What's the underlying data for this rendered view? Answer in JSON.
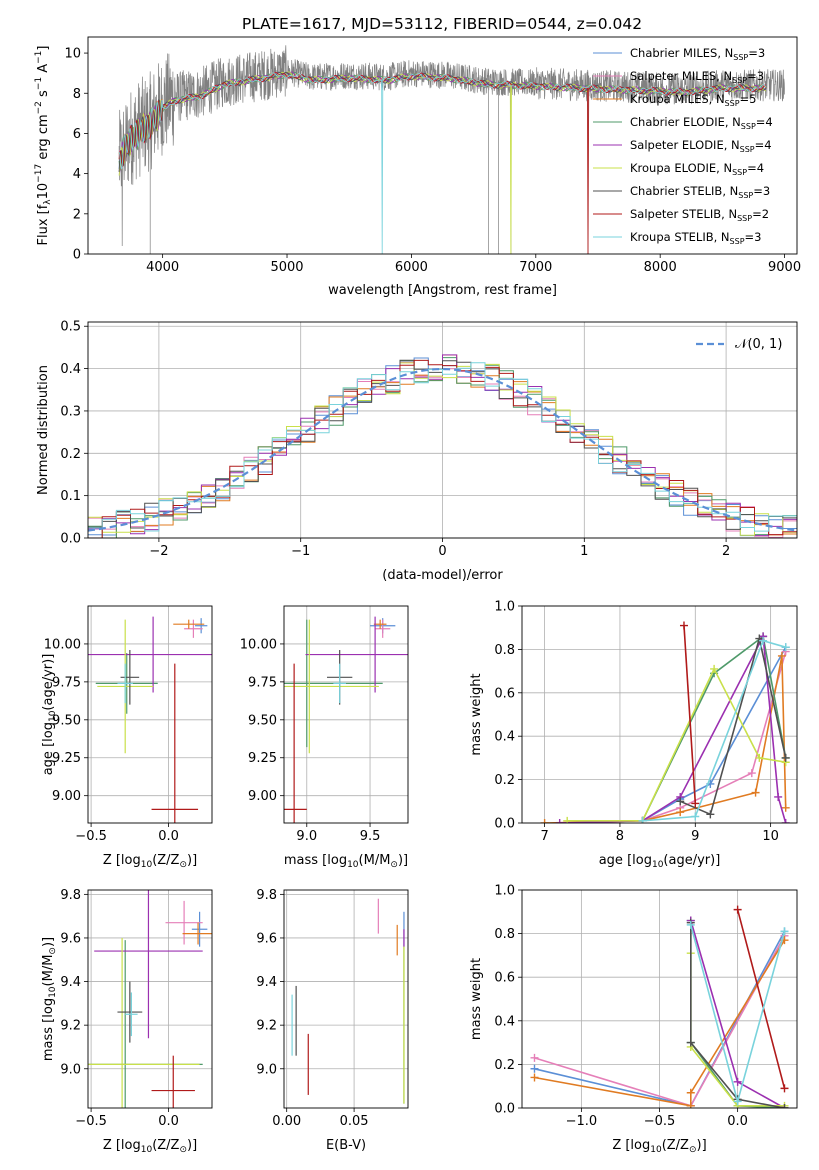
{
  "figure": {
    "title": "PLATE=1617, MJD=53112, FIBERID=0544, z=0.042"
  },
  "colors": {
    "Chabrier MILES": "#5b8fd6",
    "Salpeter MILES": "#e57fb8",
    "Kroupa MILES": "#e07b22",
    "Chabrier ELODIE": "#4f9a6a",
    "Salpeter ELODIE": "#9b30b0",
    "Kroupa ELODIE": "#c9e04a",
    "Chabrier STELIB": "#505050",
    "Salpeter STELIB": "#b01a1a",
    "Kroupa STELIB": "#79d3dc",
    "data": "#808080",
    "normal": "#5b8fd6"
  },
  "chart_data": [
    {
      "id": "spectrum",
      "type": "line",
      "xlabel": "wavelength [Angstrom, rest frame]",
      "ylabel_main": "Flux [f",
      "ylabel_sub": "λ",
      "ylabel_rest": "10",
      "ylabel_sup1": "−17",
      "ylabel_mid": " erg cm",
      "ylabel_sup2": "−2",
      "ylabel_mid2": " s",
      "ylabel_sup3": "−1",
      "ylabel_mid3": " A",
      "ylabel_sup4": "−1",
      "ylabel_end": "]",
      "xlim": [
        3400,
        9100
      ],
      "ylim": [
        0,
        10.8
      ],
      "xticks": [
        4000,
        5000,
        6000,
        7000,
        8000,
        9000
      ],
      "yticks": [
        0,
        2,
        4,
        6,
        8,
        10
      ],
      "legend": [
        {
          "model": "Chabrier MILES",
          "label": "Chabrier MILES, N",
          "sub": "SSP",
          "tail": "=3"
        },
        {
          "model": "Salpeter MILES",
          "label": "Salpeter MILES, N",
          "sub": "SSP",
          "tail": "=3"
        },
        {
          "model": "Kroupa MILES",
          "label": "Kroupa MILES, N",
          "sub": "SSP",
          "tail": "=5"
        },
        {
          "model": "Chabrier ELODIE",
          "label": "Chabrier ELODIE, N",
          "sub": "SSP",
          "tail": "=4"
        },
        {
          "model": "Salpeter ELODIE",
          "label": "Salpeter ELODIE, N",
          "sub": "SSP",
          "tail": "=4"
        },
        {
          "model": "Kroupa ELODIE",
          "label": "Kroupa ELODIE, N",
          "sub": "SSP",
          "tail": "=4"
        },
        {
          "model": "Chabrier STELIB",
          "label": "Chabrier STELIB, N",
          "sub": "SSP",
          "tail": "=3"
        },
        {
          "model": "Salpeter STELIB",
          "label": "Salpeter STELIB, N",
          "sub": "SSP",
          "tail": "=2"
        },
        {
          "model": "Kroupa STELIB",
          "label": "Kroupa STELIB, N",
          "sub": "SSP",
          "tail": "=3"
        }
      ],
      "continuum": {
        "x": [
          3650,
          3700,
          3800,
          3900,
          4000,
          4100,
          4200,
          4300,
          4400,
          4500,
          4700,
          5000,
          5200,
          5500,
          5800,
          6000,
          6300,
          6600,
          7000,
          7400,
          7800,
          8200,
          8500,
          8800
        ],
        "y": [
          4.6,
          5.5,
          6.2,
          6.6,
          7.4,
          7.8,
          7.9,
          8.0,
          8.3,
          8.6,
          8.8,
          9.1,
          8.8,
          8.9,
          8.8,
          9.0,
          8.9,
          8.6,
          8.5,
          8.4,
          8.3,
          8.2,
          8.4,
          8.4
        ]
      },
      "models_range": [
        3650,
        8850
      ],
      "data_range": [
        3650,
        9000
      ]
    },
    {
      "id": "residuals",
      "type": "histogram",
      "xlabel": "(data-model)/error",
      "ylabel": "Normed distribution",
      "xlim": [
        -2.5,
        2.5
      ],
      "ylim": [
        0,
        0.51
      ],
      "xticks": [
        -2,
        -1,
        0,
        1,
        2
      ],
      "yticks": [
        0,
        0.1,
        0.2,
        0.3,
        0.4,
        0.5
      ],
      "legend_label": "𝒩(0, 1)",
      "bin_width": 0.1
    },
    {
      "id": "age-Z",
      "type": "scatter",
      "xlabel": "Z [log",
      "xlabel_sub": "10",
      "xlabel_rest": "(Z/Z",
      "xlabel_sun": "⊙",
      "xlabel_end": ")]",
      "ylabel": "age  [log",
      "ylabel_sub": "10",
      "ylabel_rest": "(age/yr)]",
      "xlim": [
        -0.52,
        0.28
      ],
      "ylim": [
        8.82,
        10.25
      ],
      "xticks": [
        -0.5,
        0.0
      ],
      "yticks": [
        9.0,
        9.25,
        9.5,
        9.75,
        10.0
      ],
      "points": [
        {
          "model": "Chabrier MILES",
          "x": 0.21,
          "y": 10.12,
          "xerr": 0.04,
          "yerr": 0.05
        },
        {
          "model": "Salpeter MILES",
          "x": 0.16,
          "y": 10.1,
          "xerr": 0.06,
          "yerr": 0.06
        },
        {
          "model": "Kroupa MILES",
          "x": 0.13,
          "y": 10.13,
          "xerr": 0.1,
          "yerr": 0.03
        },
        {
          "model": "Chabrier ELODIE",
          "x": -0.27,
          "y": 9.74,
          "xerr": 0.2,
          "yerr": 0.2
        },
        {
          "model": "Salpeter ELODIE",
          "x": -0.1,
          "y": 9.93,
          "xerr": 0.45,
          "yerr": 0.25
        },
        {
          "model": "Kroupa ELODIE",
          "x": -0.28,
          "y": 9.72,
          "xerr": 0.18,
          "yerr": 0.44
        },
        {
          "model": "Chabrier STELIB",
          "x": -0.25,
          "y": 9.78,
          "xerr": 0.06,
          "yerr": 0.18
        },
        {
          "model": "Salpeter STELIB",
          "x": 0.04,
          "y": 8.91,
          "xerr": 0.15,
          "yerr": 0.96
        },
        {
          "model": "Kroupa STELIB",
          "x": -0.28,
          "y": 9.74,
          "xerr": 0.05,
          "yerr": 0.13
        }
      ]
    },
    {
      "id": "age-mass",
      "type": "scatter",
      "xlabel": "mass [log",
      "xlabel_sub": "10",
      "xlabel_rest": "(M/M",
      "xlabel_sun": "⊙",
      "xlabel_end": ")]",
      "xlim": [
        8.82,
        9.8
      ],
      "ylim": [
        8.82,
        10.25
      ],
      "xticks": [
        9.0,
        9.5
      ],
      "yticks": [
        9.0,
        9.25,
        9.5,
        9.75,
        10.0
      ],
      "points": [
        {
          "model": "Chabrier MILES",
          "x": 9.6,
          "y": 10.12,
          "xerr": 0.1,
          "yerr": 0.05
        },
        {
          "model": "Salpeter MILES",
          "x": 9.6,
          "y": 10.1,
          "xerr": 0.06,
          "yerr": 0.06
        },
        {
          "model": "Kroupa MILES",
          "x": 9.58,
          "y": 10.13,
          "xerr": 0.05,
          "yerr": 0.03
        },
        {
          "model": "Chabrier ELODIE",
          "x": 9.0,
          "y": 9.74,
          "xerr": 0.6,
          "yerr": 0.42
        },
        {
          "model": "Salpeter ELODIE",
          "x": 9.54,
          "y": 9.93,
          "xerr": 0.55,
          "yerr": 0.25
        },
        {
          "model": "Kroupa ELODIE",
          "x": 9.02,
          "y": 9.72,
          "xerr": 0.55,
          "yerr": 0.44
        },
        {
          "model": "Chabrier STELIB",
          "x": 9.26,
          "y": 9.78,
          "xerr": 0.1,
          "yerr": 0.18
        },
        {
          "model": "Salpeter STELIB",
          "x": 8.9,
          "y": 8.91,
          "xerr": 0.1,
          "yerr": 0.96
        },
        {
          "model": "Kroupa STELIB",
          "x": 9.26,
          "y": 9.74,
          "xerr": 0.05,
          "yerr": 0.13
        }
      ]
    },
    {
      "id": "weight-age",
      "type": "line",
      "xlabel": "age  [log",
      "xlabel_sub": "10",
      "xlabel_rest": "(age/yr)]",
      "ylabel": "mass weight",
      "xlim": [
        6.7,
        10.35
      ],
      "ylim": [
        0,
        1.0
      ],
      "xticks": [
        7,
        8,
        9,
        10
      ],
      "yticks": [
        0.0,
        0.2,
        0.4,
        0.6,
        0.8,
        1.0
      ],
      "series": [
        {
          "model": "Chabrier MILES",
          "x": [
            8.3,
            8.8,
            9.2,
            10.2
          ],
          "y": [
            0.01,
            0.11,
            0.18,
            0.81
          ]
        },
        {
          "model": "Salpeter MILES",
          "x": [
            8.3,
            8.8,
            9.75,
            10.2
          ],
          "y": [
            0.01,
            0.07,
            0.23,
            0.79
          ]
        },
        {
          "model": "Kroupa MILES",
          "x": [
            7.0,
            8.3,
            8.8,
            9.8,
            10.15,
            10.2
          ],
          "y": [
            0.0,
            0.01,
            0.05,
            0.14,
            0.77,
            0.07
          ]
        },
        {
          "model": "Chabrier ELODIE",
          "x": [
            8.3,
            9.25,
            9.9,
            10.2
          ],
          "y": [
            0.01,
            0.69,
            0.86,
            0.3
          ]
        },
        {
          "model": "Salpeter ELODIE",
          "x": [
            7.2,
            8.3,
            8.8,
            9.9,
            10.1,
            10.2
          ],
          "y": [
            0.0,
            0.01,
            0.12,
            0.86,
            0.12,
            0.0
          ]
        },
        {
          "model": "Kroupa ELODIE",
          "x": [
            7.3,
            8.3,
            9.25,
            9.85,
            10.2
          ],
          "y": [
            0.01,
            0.01,
            0.71,
            0.3,
            0.28
          ]
        },
        {
          "model": "Chabrier STELIB",
          "x": [
            8.8,
            9.2,
            9.85,
            10.2
          ],
          "y": [
            0.1,
            0.04,
            0.85,
            0.3
          ]
        },
        {
          "model": "Salpeter STELIB",
          "x": [
            8.85,
            9.0
          ],
          "y": [
            0.91,
            0.09
          ]
        },
        {
          "model": "Kroupa STELIB",
          "x": [
            8.3,
            9.0,
            9.9,
            10.2
          ],
          "y": [
            0.01,
            0.03,
            0.84,
            0.81
          ]
        }
      ]
    },
    {
      "id": "mass-Z",
      "type": "scatter",
      "xlabel": "Z [log",
      "xlabel_sub": "10",
      "xlabel_rest": "(Z/Z",
      "xlabel_sun": "⊙",
      "xlabel_end": ")]",
      "ylabel": "mass [log",
      "ylabel_sub": "10",
      "ylabel_rest": "(M/M",
      "ylabel_sun": "⊙",
      "ylabel_end": ")]",
      "xlim": [
        -0.52,
        0.28
      ],
      "ylim": [
        8.82,
        9.82
      ],
      "xticks": [
        -0.5,
        0.0
      ],
      "yticks": [
        9.0,
        9.2,
        9.4,
        9.6,
        9.8
      ],
      "points": [
        {
          "model": "Chabrier MILES",
          "x": 0.2,
          "y": 9.64,
          "xerr": 0.05,
          "yerr": 0.08
        },
        {
          "model": "Salpeter MILES",
          "x": 0.1,
          "y": 9.67,
          "xerr": 0.12,
          "yerr": 0.1
        },
        {
          "model": "Kroupa MILES",
          "x": 0.19,
          "y": 9.62,
          "xerr": 0.1,
          "yerr": 0.05
        },
        {
          "model": "Chabrier ELODIE",
          "x": -0.28,
          "y": 9.02,
          "xerr": 0.5,
          "yerr": 0.57
        },
        {
          "model": "Salpeter ELODIE",
          "x": -0.13,
          "y": 9.54,
          "xerr": 0.35,
          "yerr": 0.4
        },
        {
          "model": "Kroupa ELODIE",
          "x": -0.3,
          "y": 9.02,
          "xerr": 0.5,
          "yerr": 0.58
        },
        {
          "model": "Chabrier STELIB",
          "x": -0.25,
          "y": 9.26,
          "xerr": 0.08,
          "yerr": 0.14
        },
        {
          "model": "Salpeter STELIB",
          "x": 0.03,
          "y": 8.9,
          "xerr": 0.14,
          "yerr": 0.16
        },
        {
          "model": "Kroupa STELIB",
          "x": -0.24,
          "y": 9.25,
          "xerr": 0.04,
          "yerr": 0.1
        }
      ]
    },
    {
      "id": "mass-ebv",
      "type": "scatter",
      "xlabel": "E(B-V)",
      "xlim": [
        -0.002,
        0.09
      ],
      "ylim": [
        8.82,
        9.82
      ],
      "xticks": [
        0.0,
        0.05
      ],
      "yticks": [
        9.0,
        9.2,
        9.4,
        9.6,
        9.8
      ],
      "points": [
        {
          "model": "Chabrier MILES",
          "x": 0.087,
          "y": 9.64,
          "xerr": 0.0,
          "yerr": 0.08
        },
        {
          "model": "Salpeter MILES",
          "x": 0.068,
          "y": 9.7,
          "xerr": 0.0,
          "yerr": 0.08
        },
        {
          "model": "Kroupa MILES",
          "x": 0.082,
          "y": 9.59,
          "xerr": 0.0,
          "yerr": 0.07
        },
        {
          "model": "Chabrier ELODIE",
          "x": 0.087,
          "y": 9.2,
          "xerr": 0.0,
          "yerr": 0.36
        },
        {
          "model": "Salpeter ELODIE",
          "x": 0.087,
          "y": 9.6,
          "xerr": 0.0,
          "yerr": 0.04
        },
        {
          "model": "Kroupa ELODIE",
          "x": 0.087,
          "y": 9.2,
          "xerr": 0.0,
          "yerr": 0.36
        },
        {
          "model": "Chabrier STELIB",
          "x": 0.007,
          "y": 9.22,
          "xerr": 0.0,
          "yerr": 0.16
        },
        {
          "model": "Salpeter STELIB",
          "x": 0.016,
          "y": 9.02,
          "xerr": 0.0,
          "yerr": 0.14
        },
        {
          "model": "Kroupa STELIB",
          "x": 0.004,
          "y": 9.2,
          "xerr": 0.0,
          "yerr": 0.14
        }
      ]
    },
    {
      "id": "weight-Z",
      "type": "line",
      "xlabel": "Z [log",
      "xlabel_sub": "10",
      "xlabel_rest": "(Z/Z",
      "xlabel_sun": "⊙",
      "xlabel_end": ")]",
      "ylabel": "mass weight",
      "xlim": [
        -1.38,
        0.38
      ],
      "ylim": [
        0,
        1.0
      ],
      "xticks": [
        -1.0,
        -0.5,
        0.0
      ],
      "yticks": [
        0.0,
        0.2,
        0.4,
        0.6,
        0.8,
        1.0
      ],
      "series": [
        {
          "model": "Chabrier MILES",
          "x": [
            -1.3,
            -0.3,
            0.3
          ],
          "y": [
            0.18,
            0.01,
            0.81
          ]
        },
        {
          "model": "Salpeter MILES",
          "x": [
            -1.3,
            -0.3,
            0.3
          ],
          "y": [
            0.23,
            0.01,
            0.79
          ]
        },
        {
          "model": "Kroupa MILES",
          "x": [
            -1.3,
            -0.3,
            -0.3,
            0.3
          ],
          "y": [
            0.14,
            0.01,
            0.07,
            0.77
          ]
        },
        {
          "model": "Chabrier ELODIE",
          "x": [
            -0.3,
            -0.3,
            0.0,
            0.3
          ],
          "y": [
            0.86,
            0.3,
            0.01,
            0.0
          ]
        },
        {
          "model": "Salpeter ELODIE",
          "x": [
            -0.3,
            0.0,
            0.3
          ],
          "y": [
            0.86,
            0.12,
            0.0
          ]
        },
        {
          "model": "Kroupa ELODIE",
          "x": [
            -0.3,
            -0.3,
            0.0,
            0.3
          ],
          "y": [
            0.71,
            0.28,
            0.01,
            0.01
          ]
        },
        {
          "model": "Chabrier STELIB",
          "x": [
            -0.3,
            -0.3,
            0.0,
            0.3
          ],
          "y": [
            0.85,
            0.3,
            0.04,
            0.0
          ]
        },
        {
          "model": "Salpeter STELIB",
          "x": [
            0.0,
            0.3
          ],
          "y": [
            0.91,
            0.09
          ]
        },
        {
          "model": "Kroupa STELIB",
          "x": [
            -0.3,
            0.0,
            0.3
          ],
          "y": [
            0.84,
            0.03,
            0.81
          ]
        }
      ]
    }
  ]
}
